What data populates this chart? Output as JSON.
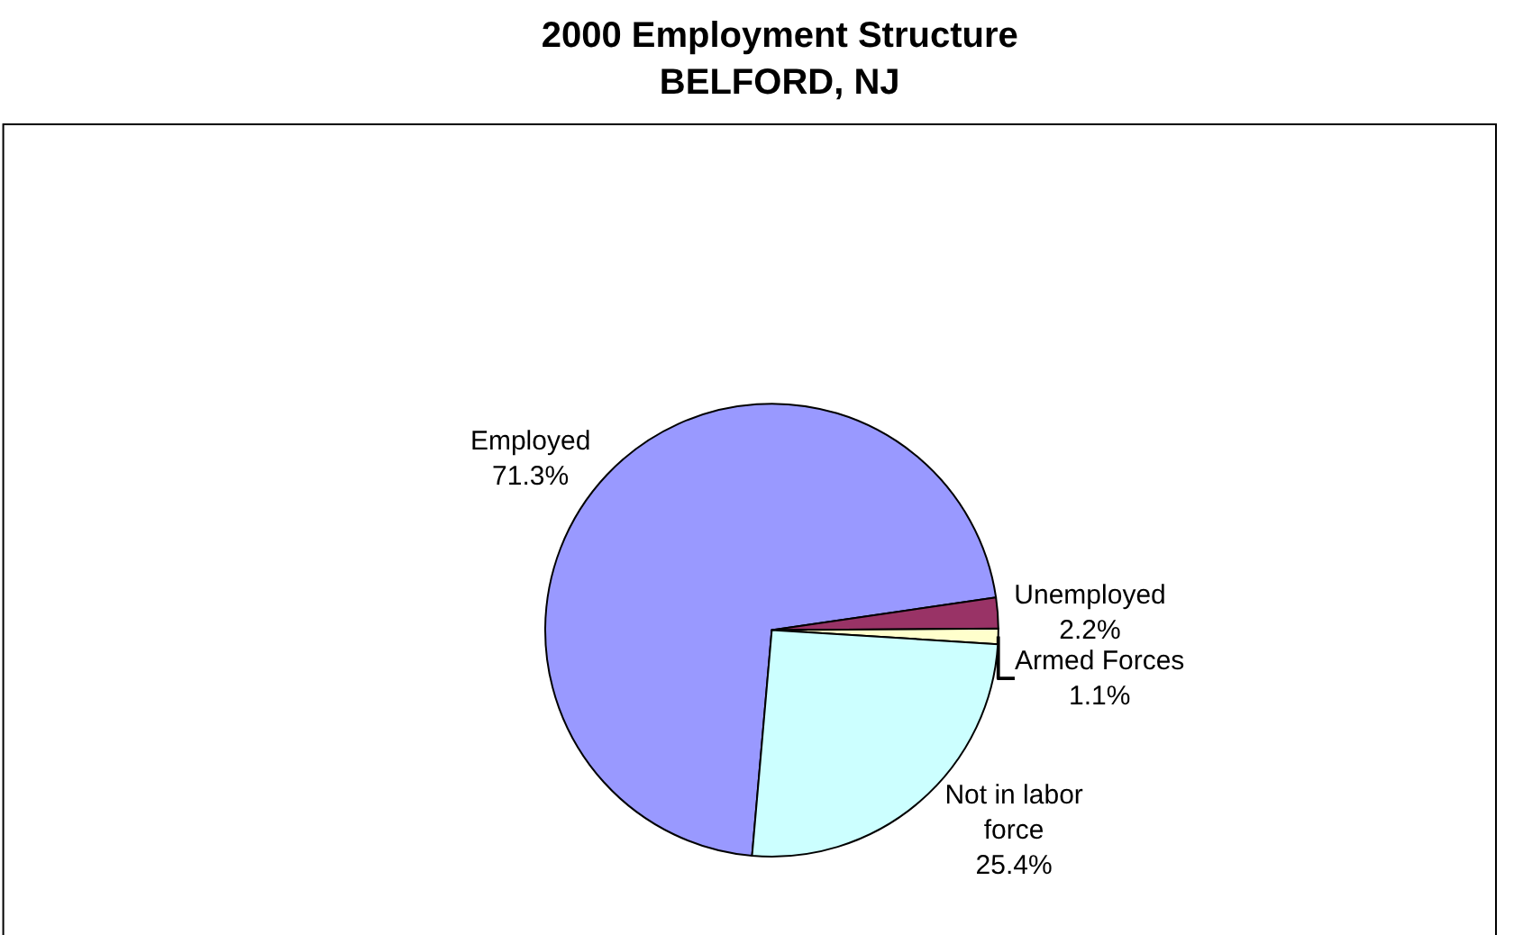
{
  "chart_data": {
    "type": "pie",
    "title": "2000 Employment Structure\nBELFORD, NJ",
    "categories": [
      "Employed",
      "Unemployed",
      "Armed Forces",
      "Not in labor force"
    ],
    "values": [
      71.3,
      2.2,
      1.1,
      25.4
    ],
    "value_labels": [
      "71.3%",
      "2.2%",
      "1.1%",
      "25.4%"
    ],
    "colors": [
      "#9999ff",
      "#993366",
      "#ffffcc",
      "#ccffff"
    ],
    "legend": false
  }
}
